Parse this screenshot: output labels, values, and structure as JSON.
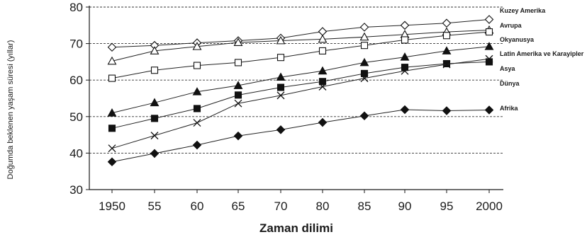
{
  "chart_data": {
    "type": "line",
    "xlabel": "Zaman dilimi",
    "ylabel": "Doğumda beklenen yaşam süresi (yıllar)",
    "categories": [
      "1950",
      "55",
      "60",
      "65",
      "70",
      "80",
      "85",
      "90",
      "95",
      "2000"
    ],
    "ylim": [
      30,
      80
    ],
    "yticks": [
      30,
      40,
      50,
      60,
      70,
      80
    ],
    "grid": "dashed-horizontal",
    "legend_position": "right",
    "series": [
      {
        "name": "Kuzey Amerika",
        "marker": "diamond-open",
        "values": [
          69,
          69.5,
          70.2,
          70.8,
          71.5,
          73.3,
          74.5,
          75,
          75.6,
          76.6
        ]
      },
      {
        "name": "Avrupa",
        "marker": "triangle-open",
        "values": [
          65.2,
          68,
          69.2,
          70.3,
          70.8,
          71.2,
          71.8,
          72.5,
          73.2,
          73.7
        ]
      },
      {
        "name": "Okyanusya",
        "marker": "square-open",
        "values": [
          60.5,
          62.7,
          64,
          64.8,
          66.2,
          68,
          69.5,
          71,
          72.2,
          73.2
        ]
      },
      {
        "name": "Latin Amerika ve Karayipler",
        "marker": "triangle-filled",
        "values": [
          51,
          53.8,
          56.8,
          58.5,
          60.8,
          62.5,
          64.8,
          66.3,
          68,
          69.2
        ]
      },
      {
        "name": "Asya",
        "marker": "square-filled",
        "values": [
          46.8,
          49.5,
          52.2,
          55.9,
          58,
          59.6,
          61.8,
          63.5,
          64.5,
          65
        ]
      },
      {
        "name": "Dünya",
        "marker": "cross",
        "values": [
          41.3,
          44.8,
          48.3,
          53.6,
          55.8,
          58.2,
          60.5,
          62.5,
          64.3,
          65.8
        ]
      },
      {
        "name": "Afrika",
        "marker": "diamond-filled",
        "values": [
          37.6,
          39.9,
          42.2,
          44.7,
          46.4,
          48.4,
          50.2,
          51.9,
          51.6,
          51.8
        ]
      }
    ]
  }
}
